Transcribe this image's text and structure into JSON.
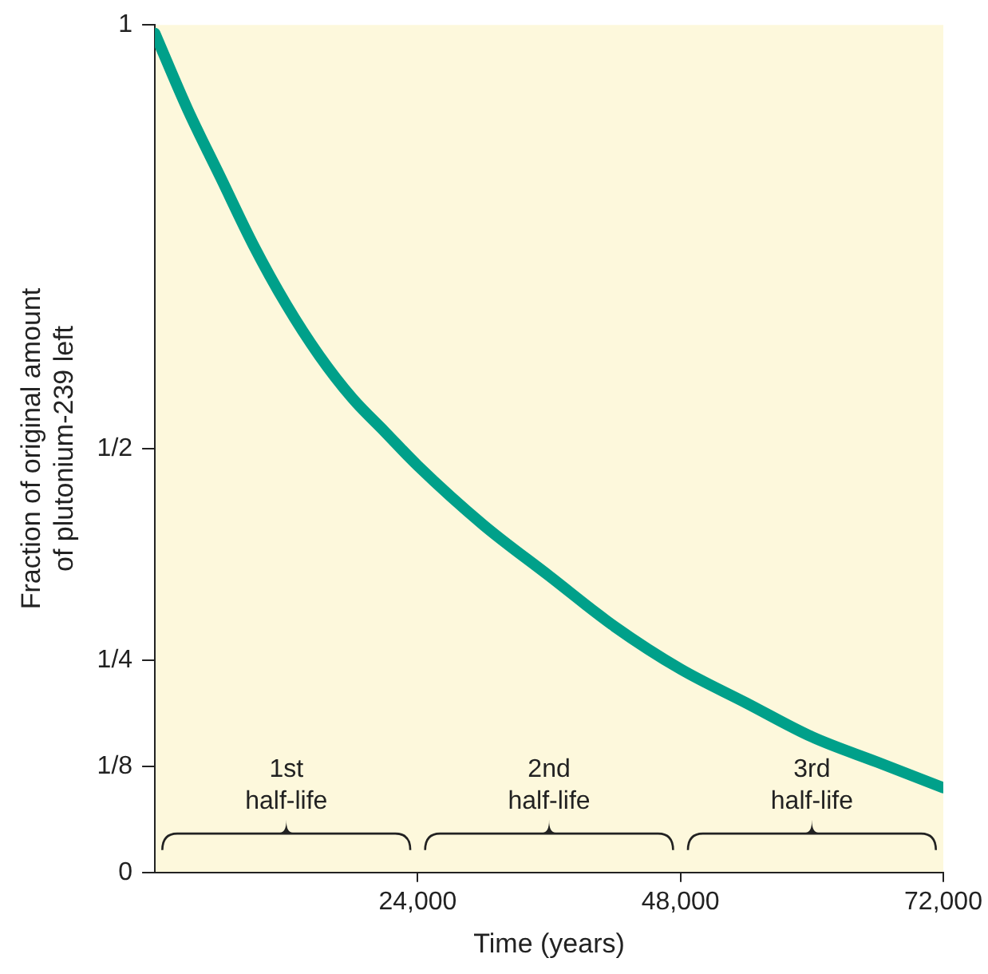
{
  "chart_data": {
    "type": "line",
    "xlabel": "Time (years)",
    "ylabel": "Fraction of original amount of plutonium-239 left",
    "x": [
      0,
      3000,
      6000,
      9000,
      12000,
      15000,
      18000,
      21000,
      24000,
      30000,
      36000,
      42000,
      48000,
      54000,
      60000,
      66000,
      72000
    ],
    "series": [
      {
        "color": "#00a08a",
        "values": [
          0.99,
          0.9,
          0.82,
          0.74,
          0.67,
          0.61,
          0.56,
          0.52,
          0.48,
          0.41,
          0.35,
          0.29,
          0.24,
          0.2,
          0.16,
          0.13,
          0.1
        ]
      }
    ],
    "xlim": [
      0,
      72000
    ],
    "ylim": [
      0,
      1
    ],
    "xticks": [
      {
        "value": 24000,
        "label": "24,000"
      },
      {
        "value": 48000,
        "label": "48,000"
      },
      {
        "value": 72000,
        "label": "72,000"
      }
    ],
    "yticks": [
      0,
      {
        "value": 0.125,
        "label": "1/8"
      },
      {
        "value": 0.25,
        "label": "1/4"
      },
      {
        "value": 0.5,
        "label": "1/2"
      },
      1
    ],
    "annotations": [
      "1st half-life",
      "2nd half-life",
      "3rd half-life"
    ],
    "grid": false,
    "legend": false,
    "marker": "none",
    "line_style": "solid"
  }
}
